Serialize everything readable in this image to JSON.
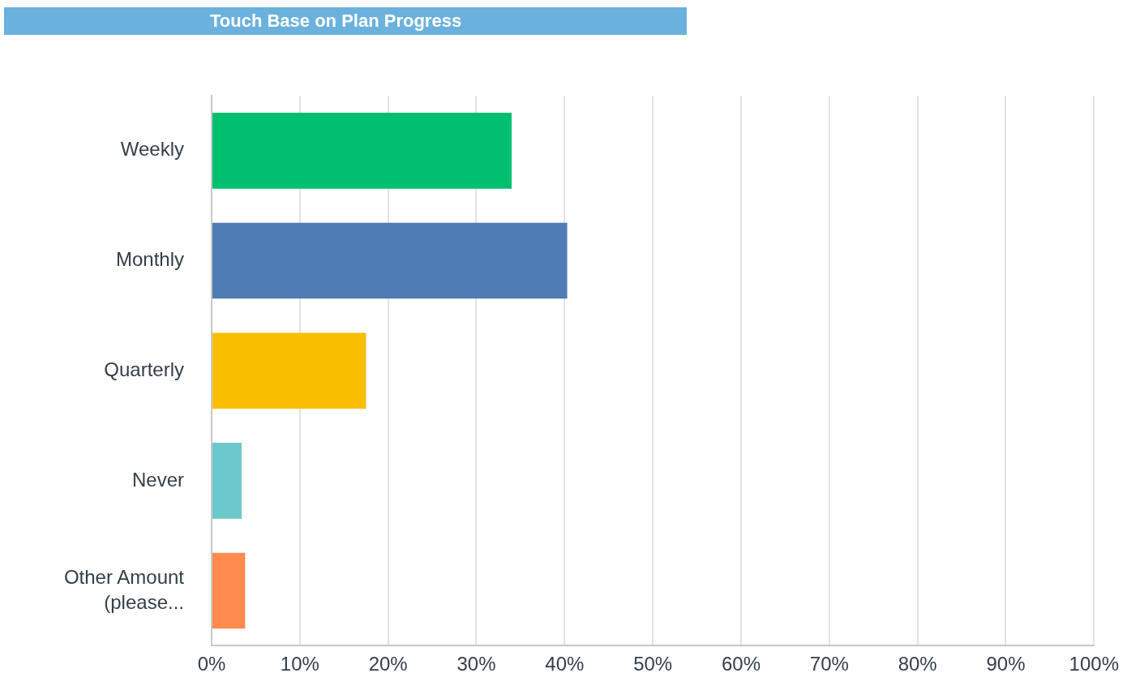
{
  "chart_data": {
    "type": "bar",
    "orientation": "horizontal",
    "title": "Touch Base on Plan Progress",
    "categories": [
      "Weekly",
      "Monthly",
      "Quarterly",
      "Never",
      "Other Amount (please..."
    ],
    "values": [
      34,
      40.3,
      17.5,
      3.4,
      3.8
    ],
    "colors": [
      "#00bf6f",
      "#507cb6",
      "#f9be00",
      "#6bc8cd",
      "#ff8b4f"
    ],
    "xlim": [
      0,
      100
    ],
    "xticks": [
      {
        "value": 0,
        "label": "0%"
      },
      {
        "value": 10,
        "label": "10%"
      },
      {
        "value": 20,
        "label": "20%"
      },
      {
        "value": 30,
        "label": "30%"
      },
      {
        "value": 40,
        "label": "40%"
      },
      {
        "value": 50,
        "label": "50%"
      },
      {
        "value": 60,
        "label": "60%"
      },
      {
        "value": 70,
        "label": "70%"
      },
      {
        "value": 80,
        "label": "80%"
      },
      {
        "value": 90,
        "label": "90%"
      },
      {
        "value": 100,
        "label": "100%"
      }
    ],
    "grid": "x",
    "legend": false
  }
}
